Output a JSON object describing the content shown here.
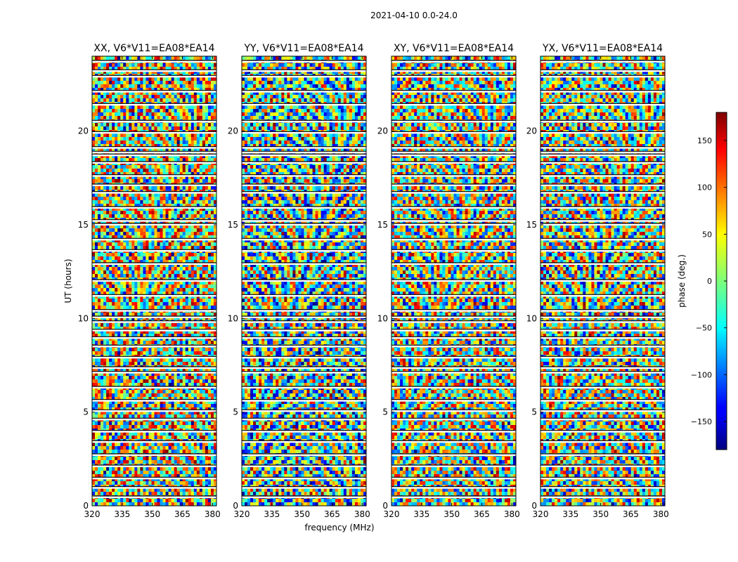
{
  "suptitle": "2021-04-10 0.0-24.0",
  "chart_data": {
    "type": "heatmap",
    "xlabel": "frequency (MHz)",
    "ylabel": "UT (hours)",
    "xlim": [
      320,
      382
    ],
    "ylim": [
      0,
      24
    ],
    "xticks": [
      320,
      335,
      350,
      365,
      380
    ],
    "yticks": [
      0,
      5,
      10,
      15,
      20
    ],
    "panels": [
      {
        "title": "XX, V6*V11=EA08*EA14",
        "warm_bias": 0.6,
        "seed": 11
      },
      {
        "title": "YY, V6*V11=EA08*EA14",
        "warm_bias": -0.5,
        "seed": 23
      },
      {
        "title": "XY, V6*V11=EA08*EA14",
        "warm_bias": 0.0,
        "seed": 37
      },
      {
        "title": "YX, V6*V11=EA08*EA14",
        "warm_bias": 0.1,
        "seed": 51
      }
    ],
    "colorbar": {
      "label": "phase (deg.)",
      "range": [
        -180,
        180
      ],
      "ticks": [
        150,
        100,
        50,
        0,
        -50,
        -100,
        -150
      ],
      "tick_labels": [
        "150",
        "100",
        "50",
        "0",
        "−50",
        "−100",
        "−150"
      ]
    },
    "colormap": "jet",
    "blank_rows_hours": [
      0.45,
      0.95,
      1.45,
      2.1,
      2.7,
      3.4,
      3.95,
      4.6,
      5.05,
      5.6,
      6.3,
      7.1,
      7.35,
      7.9,
      8.5,
      8.95,
      9.35,
      9.8,
      10.05,
      10.4,
      11.2,
      12.0,
      12.9,
      13.6,
      14.2,
      15.0,
      15.2,
      15.9,
      16.7,
      17.1,
      17.6,
      18.3,
      18.7,
      18.85,
      19.1,
      19.9,
      20.5,
      21.4,
      22.1,
      22.9,
      23.2,
      23.7
    ]
  }
}
